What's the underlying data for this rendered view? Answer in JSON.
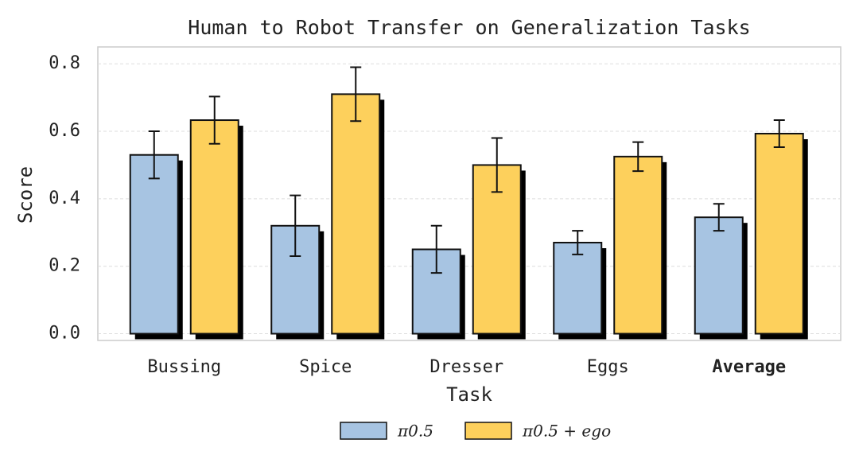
{
  "chart_data": {
    "type": "bar",
    "title": "Human to Robot Transfer on Generalization Tasks",
    "x_label": "Task",
    "y_label": "Score",
    "categories": [
      "Bussing",
      "Spice",
      "Dresser",
      "Eggs",
      "Average"
    ],
    "series": [
      {
        "name": "π0.5",
        "color": "#a7c4e2",
        "values": [
          0.53,
          0.32,
          0.25,
          0.27,
          0.345
        ],
        "errors": [
          0.07,
          0.09,
          0.07,
          0.035,
          0.04
        ]
      },
      {
        "name": "π0.5 + ego",
        "color": "#fdd05c",
        "values": [
          0.633,
          0.71,
          0.5,
          0.525,
          0.593
        ],
        "errors": [
          0.07,
          0.08,
          0.08,
          0.043,
          0.04
        ]
      }
    ],
    "ylim": [
      -0.02,
      0.85
    ],
    "yticks": [
      {
        "value": 0,
        "label": "0.0"
      },
      {
        "value": 0.2,
        "label": "0.2"
      },
      {
        "value": 0.4,
        "label": "0.4"
      },
      {
        "value": 0.6,
        "label": "0.6"
      },
      {
        "value": 0.8,
        "label": "0.8"
      }
    ],
    "grid": true
  }
}
